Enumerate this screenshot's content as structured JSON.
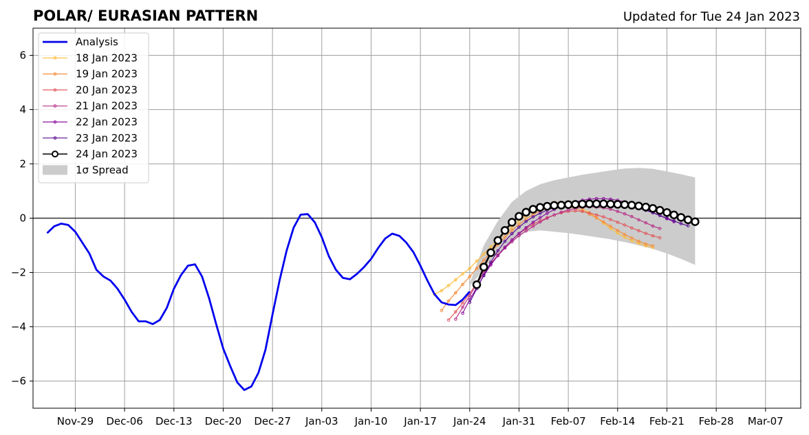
{
  "chart_data": {
    "type": "line",
    "title": "POLAR/ EURASIAN  PATTERN",
    "subtitle": "Updated for Tue 24 Jan 2023",
    "ylim": [
      -7,
      7
    ],
    "yticks": [
      -6,
      -4,
      -2,
      0,
      2,
      4,
      6
    ],
    "ytick_labels": [
      "−6",
      "−4",
      "−2",
      "0",
      "2",
      "4",
      "6"
    ],
    "xlim": [
      "2022-11-23",
      "2023-03-12"
    ],
    "xticks": [
      "2022-11-29",
      "2022-12-06",
      "2022-12-13",
      "2022-12-20",
      "2022-12-27",
      "2023-01-03",
      "2023-01-10",
      "2023-01-17",
      "2023-01-24",
      "2023-01-31",
      "2023-02-07",
      "2023-02-14",
      "2023-02-21",
      "2023-02-28",
      "2023-03-07"
    ],
    "xtick_labels": [
      "Nov-29",
      "Dec-06",
      "Dec-13",
      "Dec-20",
      "Dec-27",
      "Jan-03",
      "Jan-10",
      "Jan-17",
      "Jan-24",
      "Jan-31",
      "Feb-07",
      "Feb-14",
      "Feb-21",
      "Feb-28",
      "Mar-07"
    ],
    "grid": true,
    "legend_position": "upper-left",
    "analysis": {
      "name": "Analysis",
      "color": "#0000ee",
      "x_start": "2022-11-25",
      "values": [
        -0.55,
        -0.3,
        -0.2,
        -0.25,
        -0.5,
        -0.9,
        -1.3,
        -1.9,
        -2.15,
        -2.3,
        -2.6,
        -3.0,
        -3.45,
        -3.8,
        -3.8,
        -3.9,
        -3.75,
        -3.3,
        -2.6,
        -2.1,
        -1.75,
        -1.7,
        -2.15,
        -2.95,
        -3.9,
        -4.8,
        -5.45,
        -6.05,
        -6.33,
        -6.2,
        -5.7,
        -4.85,
        -3.55,
        -2.3,
        -1.2,
        -0.35,
        0.13,
        0.15,
        -0.15,
        -0.7,
        -1.4,
        -1.9,
        -2.2,
        -2.25,
        -2.05,
        -1.8,
        -1.5,
        -1.1,
        -0.75,
        -0.57,
        -0.65,
        -0.9,
        -1.25,
        -1.75,
        -2.3,
        -2.8,
        -3.1,
        -3.18,
        -3.2,
        -3.0,
        -2.7
      ]
    },
    "forecasts": [
      {
        "name": "18 Jan 2023",
        "color": "#fbbd3c",
        "x_start": "2023-01-19",
        "values": [
          -2.8,
          -2.67,
          -2.48,
          -2.27,
          -2.05,
          -1.85,
          -1.58,
          -1.32,
          -1.06,
          -0.8,
          -0.55,
          -0.33,
          -0.1,
          0.1,
          0.27,
          0.4,
          0.52,
          0.58,
          0.58,
          0.55,
          0.47,
          0.35,
          0.2,
          0.02,
          -0.18,
          -0.38,
          -0.55,
          -0.7,
          -0.83,
          -0.93,
          -1.02,
          -1.08
        ]
      },
      {
        "name": "19 Jan 2023",
        "color": "#f58e3e",
        "x_start": "2023-01-20",
        "values": [
          -3.4,
          -3.05,
          -2.75,
          -2.44,
          -2.15,
          -1.85,
          -1.55,
          -1.25,
          -0.97,
          -0.7,
          -0.45,
          -0.23,
          -0.03,
          0.13,
          0.27,
          0.37,
          0.43,
          0.45,
          0.42,
          0.36,
          0.27,
          0.15,
          0.01,
          -0.14,
          -0.3,
          -0.45,
          -0.6,
          -0.73,
          -0.85,
          -0.95,
          -1.02
        ]
      },
      {
        "name": "20 Jan 2023",
        "color": "#e05b60",
        "x_start": "2023-01-21",
        "values": [
          -3.75,
          -3.45,
          -3.12,
          -2.77,
          -2.4,
          -2.02,
          -1.67,
          -1.35,
          -1.07,
          -0.8,
          -0.57,
          -0.38,
          -0.22,
          -0.1,
          0.02,
          0.12,
          0.2,
          0.25,
          0.27,
          0.25,
          0.19,
          0.12,
          0.05,
          -0.05,
          -0.15,
          -0.25,
          -0.36,
          -0.46,
          -0.56,
          -0.65,
          -0.72
        ]
      },
      {
        "name": "21 Jan 2023",
        "color": "#b83389",
        "x_start": "2023-01-22",
        "values": [
          -3.72,
          -3.28,
          -2.85,
          -2.43,
          -2.03,
          -1.68,
          -1.38,
          -1.1,
          -0.87,
          -0.65,
          -0.47,
          -0.3,
          -0.14,
          0.0,
          0.12,
          0.22,
          0.3,
          0.36,
          0.4,
          0.42,
          0.41,
          0.38,
          0.33,
          0.25,
          0.16,
          0.06,
          -0.06,
          -0.17,
          -0.29,
          -0.38
        ]
      },
      {
        "name": "22 Jan 2023",
        "color": "#8c129e",
        "x_start": "2023-01-23",
        "values": [
          -3.5,
          -3.0,
          -2.55,
          -2.12,
          -1.72,
          -1.38,
          -1.07,
          -0.8,
          -0.56,
          -0.35,
          -0.15,
          0.02,
          0.18,
          0.32,
          0.44,
          0.53,
          0.6,
          0.66,
          0.7,
          0.72,
          0.72,
          0.7,
          0.66,
          0.6,
          0.52,
          0.43,
          0.33,
          0.21,
          0.1,
          -0.02,
          -0.13
        ]
      },
      {
        "name": "23 Jan 2023",
        "color": "#590c91",
        "x_start": "2023-01-24",
        "values": [
          -3.1,
          -2.6,
          -2.1,
          -1.62,
          -1.2,
          -0.85,
          -0.57,
          -0.33,
          -0.12,
          0.05,
          0.18,
          0.3,
          0.4,
          0.48,
          0.54,
          0.58,
          0.61,
          0.62,
          0.62,
          0.61,
          0.59,
          0.55,
          0.5,
          0.44,
          0.37,
          0.29,
          0.2,
          0.1,
          0.0,
          -0.1,
          -0.2,
          -0.28
        ]
      },
      {
        "name": "24 Jan 2023",
        "color": "#000000",
        "x_start": "2023-01-25",
        "values": [
          -2.45,
          -1.8,
          -1.27,
          -0.82,
          -0.45,
          -0.15,
          0.07,
          0.22,
          0.33,
          0.4,
          0.44,
          0.47,
          0.48,
          0.5,
          0.51,
          0.52,
          0.53,
          0.53,
          0.53,
          0.52,
          0.51,
          0.5,
          0.48,
          0.45,
          0.41,
          0.36,
          0.29,
          0.21,
          0.12,
          0.03,
          -0.06,
          -0.13
        ]
      }
    ],
    "spread": {
      "name": "1σ Spread",
      "color": "#cccccc",
      "x": [
        "2023-01-24",
        "2023-01-26",
        "2023-01-28",
        "2023-01-30",
        "2023-02-01",
        "2023-02-03",
        "2023-02-05",
        "2023-02-07",
        "2023-02-09",
        "2023-02-11",
        "2023-02-13",
        "2023-02-15",
        "2023-02-17",
        "2023-02-19",
        "2023-02-21",
        "2023-02-23",
        "2023-02-25"
      ],
      "upper": [
        -2.4,
        -1.0,
        -0.1,
        0.6,
        1.0,
        1.25,
        1.4,
        1.5,
        1.6,
        1.68,
        1.76,
        1.83,
        1.85,
        1.82,
        1.72,
        1.62,
        1.5
      ],
      "lower": [
        -2.5,
        -1.9,
        -1.3,
        -0.85,
        -0.5,
        -0.45,
        -0.5,
        -0.55,
        -0.62,
        -0.7,
        -0.78,
        -0.88,
        -1.0,
        -1.13,
        -1.3,
        -1.5,
        -1.72
      ]
    }
  }
}
